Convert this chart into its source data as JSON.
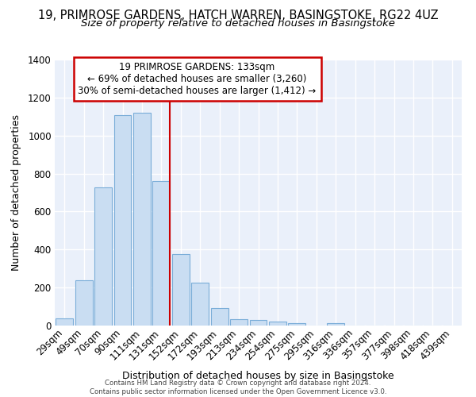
{
  "title": "19, PRIMROSE GARDENS, HATCH WARREN, BASINGSTOKE, RG22 4UZ",
  "subtitle": "Size of property relative to detached houses in Basingstoke",
  "xlabel": "Distribution of detached houses by size in Basingstoke",
  "ylabel": "Number of detached properties",
  "categories": [
    "29sqm",
    "49sqm",
    "70sqm",
    "90sqm",
    "111sqm",
    "131sqm",
    "152sqm",
    "172sqm",
    "193sqm",
    "213sqm",
    "234sqm",
    "254sqm",
    "275sqm",
    "295sqm",
    "316sqm",
    "336sqm",
    "357sqm",
    "377sqm",
    "398sqm",
    "418sqm",
    "439sqm"
  ],
  "values": [
    38,
    240,
    727,
    1107,
    1120,
    760,
    378,
    224,
    90,
    35,
    28,
    20,
    13,
    0,
    12,
    0,
    0,
    0,
    0,
    0,
    0
  ],
  "bar_color": "#c9ddf2",
  "bar_edge_color": "#7aadd8",
  "marker_line_color": "#cc0000",
  "annotation_line1": "19 PRIMROSE GARDENS: 133sqm",
  "annotation_line2": "← 69% of detached houses are smaller (3,260)",
  "annotation_line3": "30% of semi-detached houses are larger (1,412) →",
  "annotation_box_color": "#cc0000",
  "ylim": [
    0,
    1400
  ],
  "yticks": [
    0,
    200,
    400,
    600,
    800,
    1000,
    1200,
    1400
  ],
  "background_color": "#eaf0fa",
  "grid_color": "#ffffff",
  "footer_line1": "Contains HM Land Registry data © Crown copyright and database right 2024.",
  "footer_line2": "Contains public sector information licensed under the Open Government Licence v3.0.",
  "title_fontsize": 10.5,
  "subtitle_fontsize": 9.5,
  "marker_bar_index": 5
}
